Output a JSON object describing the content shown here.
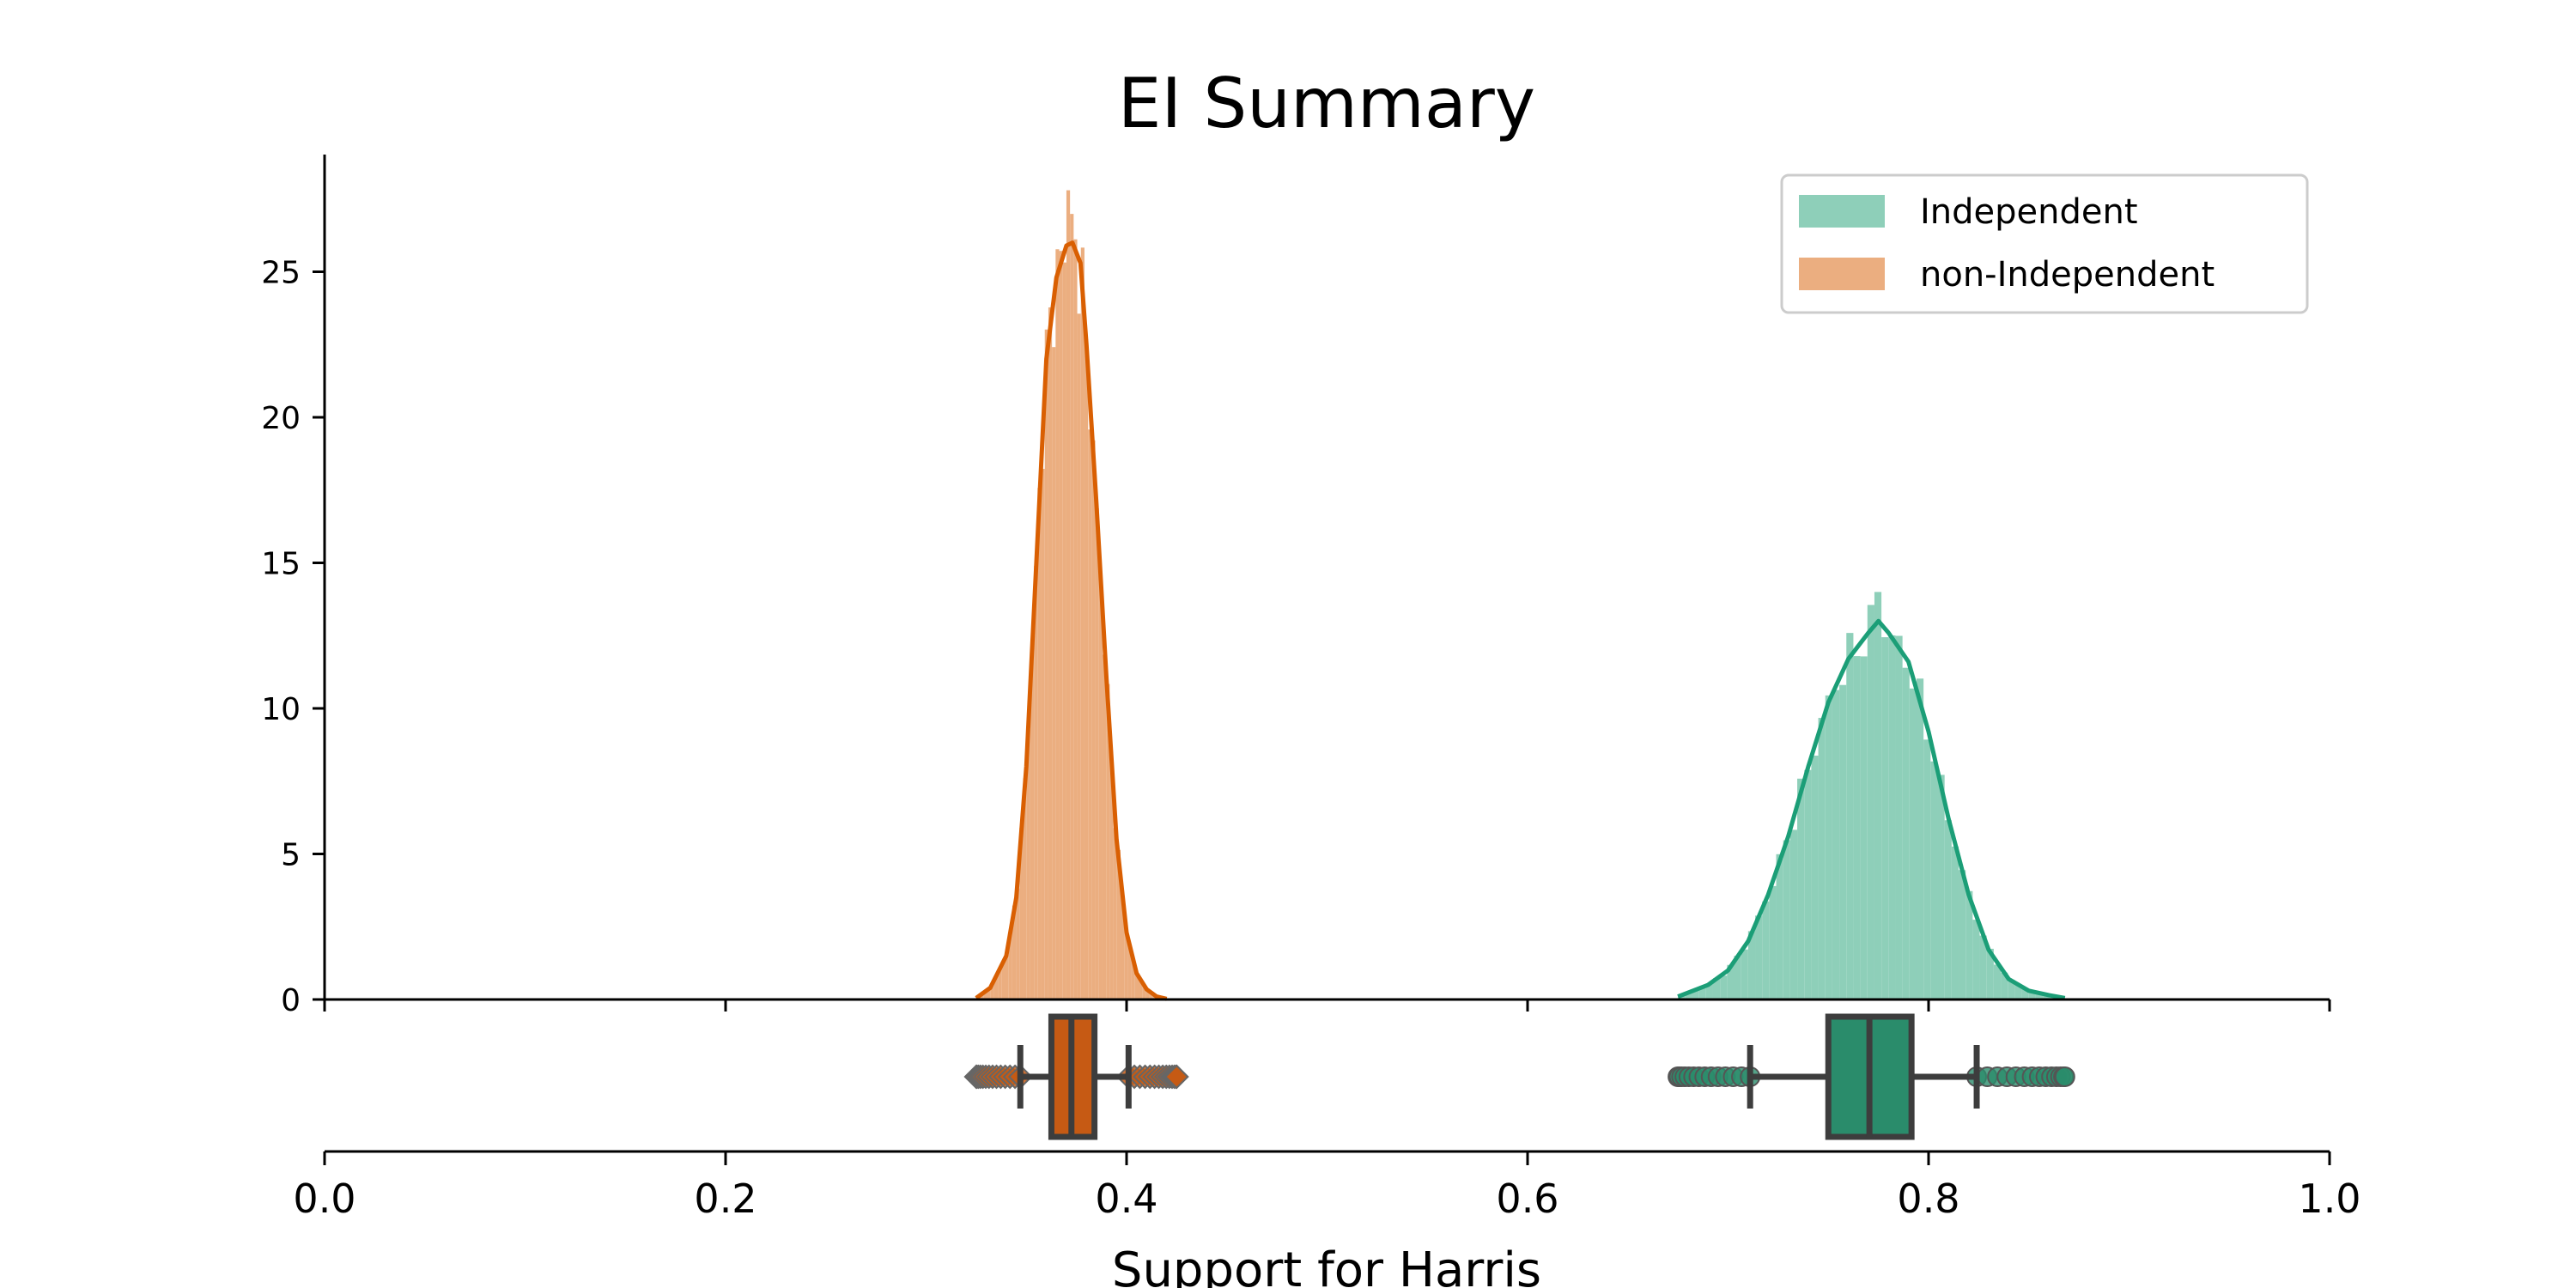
{
  "chart_data": {
    "type": "histogram+kde+boxplot",
    "title": "EI Summary",
    "xlabel": "Support for Harris",
    "ylabel": "",
    "xlim": [
      0.0,
      1.0
    ],
    "ylim": [
      0,
      29
    ],
    "x_ticks": [
      "0.0",
      "0.2",
      "0.4",
      "0.6",
      "0.8",
      "1.0"
    ],
    "y_ticks": [
      "0",
      "5",
      "10",
      "15",
      "20",
      "25"
    ],
    "legend_position": "top-right",
    "grid": false,
    "series": [
      {
        "name": "Independent",
        "color": "#1b9e77",
        "fill_color": "#8ecfb9",
        "box_color": "#2a8c6b",
        "outlier_marker": "circle",
        "kde": {
          "x": [
            0.675,
            0.69,
            0.7,
            0.71,
            0.72,
            0.73,
            0.74,
            0.75,
            0.76,
            0.77,
            0.775,
            0.78,
            0.79,
            0.8,
            0.81,
            0.82,
            0.83,
            0.84,
            0.85,
            0.86,
            0.868
          ],
          "y": [
            0.1,
            0.5,
            1.0,
            2.0,
            3.6,
            5.6,
            8.0,
            10.2,
            11.7,
            12.6,
            13.0,
            12.6,
            11.6,
            9.2,
            6.2,
            3.6,
            1.7,
            0.7,
            0.3,
            0.15,
            0.05
          ]
        },
        "histogram": {
          "bin_width": 0.0035,
          "peak_bar": {
            "x": 0.7735,
            "y": 14.0
          }
        },
        "box": {
          "whisker_low": 0.711,
          "q1": 0.75,
          "median": 0.7705,
          "q3": 0.7915,
          "whisker_high": 0.824,
          "outlier_range": [
            0.675,
            0.868
          ]
        }
      },
      {
        "name": "non-Independent",
        "color": "#d95f02",
        "fill_color": "#ebae80",
        "box_color": "#c65a14",
        "outlier_marker": "diamond",
        "kde": {
          "x": [
            0.325,
            0.332,
            0.34,
            0.345,
            0.35,
            0.355,
            0.36,
            0.365,
            0.37,
            0.373,
            0.377,
            0.38,
            0.385,
            0.39,
            0.395,
            0.4,
            0.405,
            0.41,
            0.415,
            0.42
          ],
          "y": [
            0.05,
            0.4,
            1.5,
            3.5,
            8.0,
            15.0,
            22.0,
            24.8,
            25.9,
            26.0,
            25.3,
            22.5,
            17.0,
            11.0,
            5.5,
            2.3,
            0.9,
            0.35,
            0.1,
            0.02
          ]
        },
        "histogram": {
          "bin_width": 0.0018,
          "peak_bar": {
            "x": 0.3715,
            "y": 27.8
          }
        },
        "box": {
          "whisker_low": 0.347,
          "q1": 0.3625,
          "median": 0.3725,
          "q3": 0.384,
          "whisker_high": 0.401,
          "outlier_range": [
            0.325,
            0.425
          ]
        }
      }
    ]
  }
}
